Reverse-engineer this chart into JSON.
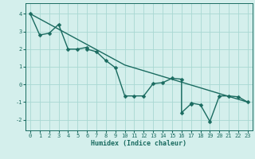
{
  "xlabel": "Humidex (Indice chaleur)",
  "bg_color": "#d4efec",
  "grid_color": "#a8d8d2",
  "line_color": "#1a6b60",
  "markersize": 2.5,
  "linewidth": 1.0,
  "x_data": [
    0,
    1,
    2,
    3,
    4,
    5,
    6,
    6,
    7,
    8,
    9,
    10,
    11,
    12,
    13,
    14,
    15,
    16,
    16,
    17,
    17,
    18,
    19,
    20,
    21,
    22,
    23
  ],
  "y_data": [
    4.0,
    2.8,
    2.9,
    3.4,
    2.0,
    2.0,
    2.1,
    2.0,
    1.85,
    1.35,
    0.95,
    -0.65,
    -0.65,
    -0.65,
    0.05,
    0.1,
    0.35,
    0.3,
    -1.6,
    -1.1,
    -1.05,
    -1.15,
    -2.1,
    -0.65,
    -0.65,
    -0.7,
    -1.0
  ],
  "line2_x": [
    0,
    10,
    23
  ],
  "line2_y": [
    4.0,
    1.1,
    -1.0
  ],
  "xlim": [
    -0.5,
    23.5
  ],
  "ylim": [
    -2.6,
    4.6
  ],
  "yticks": [
    -2,
    -1,
    0,
    1,
    2,
    3,
    4
  ],
  "xticks": [
    0,
    1,
    2,
    3,
    4,
    5,
    6,
    7,
    8,
    9,
    10,
    11,
    12,
    13,
    14,
    15,
    16,
    17,
    18,
    19,
    20,
    21,
    22,
    23
  ],
  "tick_fontsize": 5.0,
  "xlabel_fontsize": 6.0
}
